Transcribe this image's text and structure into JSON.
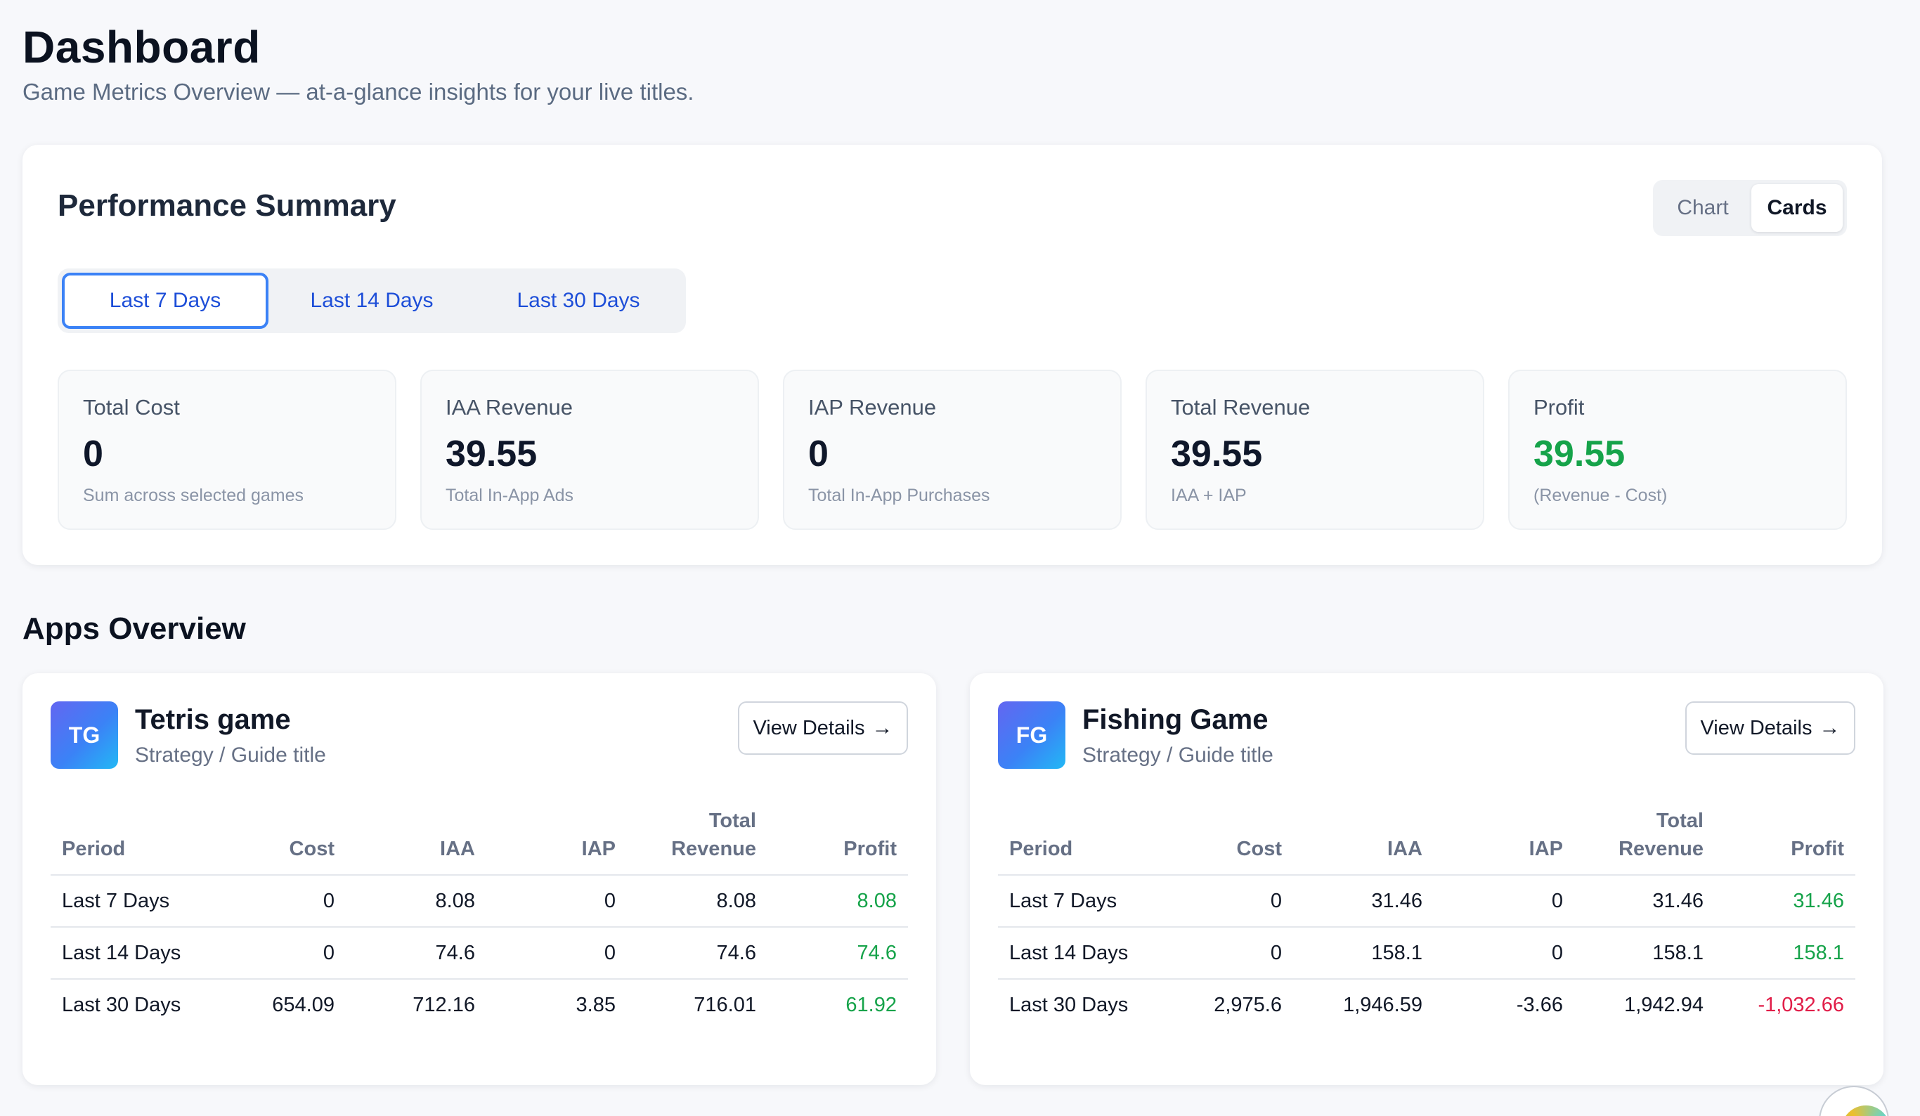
{
  "page": {
    "title": "Dashboard",
    "subtitle": "Game Metrics Overview — at-a-glance insights for your live titles."
  },
  "summary": {
    "title": "Performance Summary",
    "view_toggle": {
      "options": [
        "Chart",
        "Cards"
      ],
      "selected": "Cards"
    },
    "period_tabs": {
      "options": [
        "Last 7 Days",
        "Last 14 Days",
        "Last 30 Days"
      ],
      "selected": "Last 7 Days"
    },
    "metrics": [
      {
        "label": "Total Cost",
        "value": "0",
        "sub": "Sum across selected games"
      },
      {
        "label": "IAA Revenue",
        "value": "39.55",
        "sub": "Total In-App Ads"
      },
      {
        "label": "IAP Revenue",
        "value": "0",
        "sub": "Total In-App Purchases"
      },
      {
        "label": "Total Revenue",
        "value": "39.55",
        "sub": "IAA + IAP"
      },
      {
        "label": "Profit",
        "value": "39.55",
        "sub": "(Revenue - Cost)"
      }
    ]
  },
  "apps": {
    "title": "Apps Overview",
    "columns": [
      "Period",
      "Cost",
      "IAA",
      "IAP",
      "Total Revenue",
      "Profit"
    ],
    "items": [
      {
        "initials": "TG",
        "name": "Tetris game",
        "genre": "Strategy / Guide title",
        "details_label": "View Details",
        "rows": [
          {
            "period": "Last 7 Days",
            "cost": "0",
            "iaa": "8.08",
            "iap": "0",
            "total": "8.08",
            "profit": "8.08"
          },
          {
            "period": "Last 14 Days",
            "cost": "0",
            "iaa": "74.6",
            "iap": "0",
            "total": "74.6",
            "profit": "74.6"
          },
          {
            "period": "Last 30 Days",
            "cost": "654.09",
            "iaa": "712.16",
            "iap": "3.85",
            "total": "716.01",
            "profit": "61.92"
          }
        ]
      },
      {
        "initials": "FG",
        "name": "Fishing Game",
        "genre": "Strategy / Guide title",
        "details_label": "View Details",
        "rows": [
          {
            "period": "Last 7 Days",
            "cost": "0",
            "iaa": "31.46",
            "iap": "0",
            "total": "31.46",
            "profit": "31.46"
          },
          {
            "period": "Last 14 Days",
            "cost": "0",
            "iaa": "158.1",
            "iap": "0",
            "total": "158.1",
            "profit": "158.1"
          },
          {
            "period": "Last 30 Days",
            "cost": "2,975.6",
            "iaa": "1,946.59",
            "iap": "-3.66",
            "total": "1,942.94",
            "profit": "-1,032.66"
          }
        ]
      }
    ]
  },
  "colors": {
    "accent": "#3b82f6",
    "tab_text": "#1d4ed8",
    "positive": "#16a34a",
    "negative": "#e11d48"
  },
  "icons": {
    "details_arrow": "arrow-right-icon",
    "assistant": "assistant-fab-icon"
  }
}
